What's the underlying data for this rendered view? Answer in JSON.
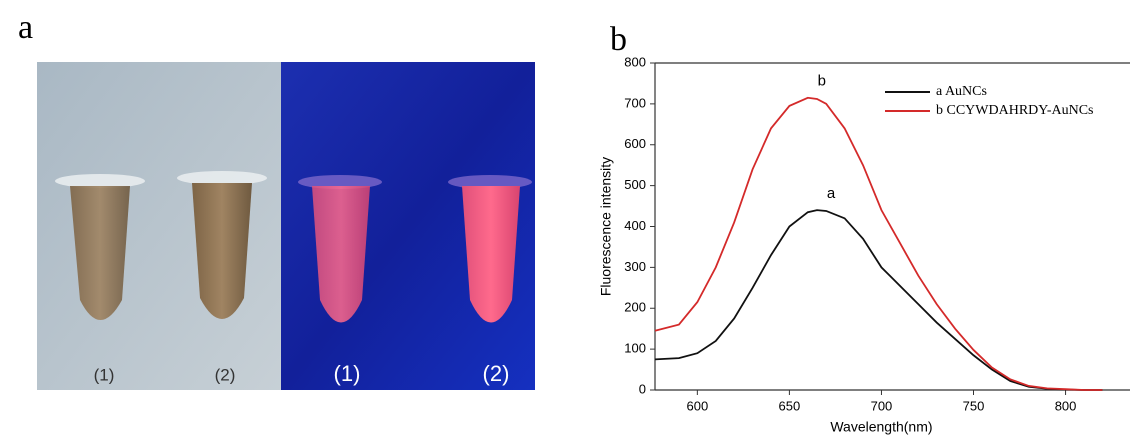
{
  "panel_labels": [
    "a",
    "b"
  ],
  "photo": {
    "labels": [
      "(1)",
      "(2)",
      "(1)",
      "(2)"
    ]
  },
  "chart_data": {
    "type": "line",
    "x_label": "Wavelength(nm)",
    "y_label": "Fluorescence intensity",
    "x": [
      577,
      590,
      600,
      610,
      620,
      630,
      640,
      650,
      660,
      665,
      670,
      680,
      690,
      700,
      710,
      720,
      730,
      740,
      750,
      760,
      770,
      780,
      790,
      800,
      810,
      820
    ],
    "series": [
      {
        "name": "a AuNCs",
        "annotation": "a",
        "color": "#111111",
        "values": [
          75,
          78,
          90,
          120,
          175,
          250,
          330,
          400,
          435,
          440,
          438,
          420,
          370,
          300,
          255,
          210,
          165,
          125,
          85,
          50,
          22,
          8,
          3,
          1,
          0,
          0
        ]
      },
      {
        "name": "b CCYWDAHRDY-AuNCs",
        "annotation": "b",
        "color": "#d42a2a",
        "values": [
          145,
          160,
          215,
          300,
          410,
          540,
          640,
          695,
          715,
          712,
          700,
          640,
          550,
          440,
          360,
          280,
          210,
          150,
          98,
          55,
          26,
          10,
          4,
          2,
          0,
          0
        ]
      }
    ],
    "xlim": [
      577,
      835
    ],
    "ylim": [
      0,
      800
    ],
    "xticks": [
      600,
      650,
      700,
      750,
      800
    ],
    "yticks": [
      0,
      100,
      200,
      300,
      400,
      500,
      600,
      700,
      800
    ]
  }
}
